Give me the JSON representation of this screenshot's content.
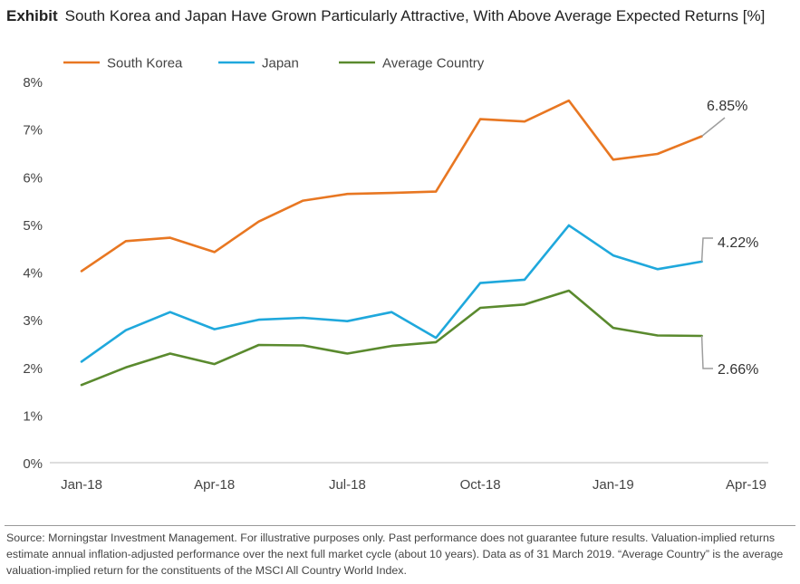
{
  "title": {
    "lead": "Exhibit",
    "text": "South Korea and Japan Have Grown Particularly Attractive, With Above Average Expected Returns [%]"
  },
  "source": "Source: Morningstar Investment Management. For illustrative purposes only. Past performance does not guarantee future results. Valuation-implied returns estimate annual inflation-adjusted performance over the next full market cycle (about 10 years). Data as of 31 March 2019. “Average Country” is the average valuation-implied return for the constituents of the MSCI All Country World Index.",
  "chart_data": {
    "type": "line",
    "x": [
      "Jan-18",
      "Feb-18",
      "Mar-18",
      "Apr-18",
      "May-18",
      "Jun-18",
      "Jul-18",
      "Aug-18",
      "Sep-18",
      "Oct-18",
      "Nov-18",
      "Dec-18",
      "Jan-19",
      "Feb-19",
      "Mar-19"
    ],
    "x_tick_labels": [
      "Jan-18",
      "Apr-18",
      "Jul-18",
      "Oct-18",
      "Jan-19",
      "Apr-19"
    ],
    "y_tick_labels": [
      "0%",
      "1%",
      "2%",
      "3%",
      "4%",
      "5%",
      "6%",
      "7%",
      "8%"
    ],
    "ylim": [
      0,
      8
    ],
    "grid": false,
    "legend_position": "top-left",
    "series": [
      {
        "name": "South Korea",
        "color": "#E87722",
        "values": [
          4.02,
          4.65,
          4.72,
          4.42,
          5.06,
          5.5,
          5.64,
          5.66,
          5.69,
          7.21,
          7.16,
          7.6,
          6.36,
          6.48,
          6.85
        ],
        "end_label": "6.85%"
      },
      {
        "name": "Japan",
        "color": "#1FA8DC",
        "values": [
          2.12,
          2.78,
          3.16,
          2.8,
          3.0,
          3.04,
          2.97,
          3.16,
          2.62,
          3.77,
          3.84,
          4.98,
          4.35,
          4.06,
          4.22
        ],
        "end_label": "4.22%"
      },
      {
        "name": "Average Country",
        "color": "#5A8A2E",
        "values": [
          1.63,
          2.0,
          2.29,
          2.07,
          2.47,
          2.46,
          2.29,
          2.45,
          2.53,
          3.25,
          3.32,
          3.61,
          2.83,
          2.67,
          2.66
        ],
        "end_label": "2.66%"
      }
    ]
  }
}
